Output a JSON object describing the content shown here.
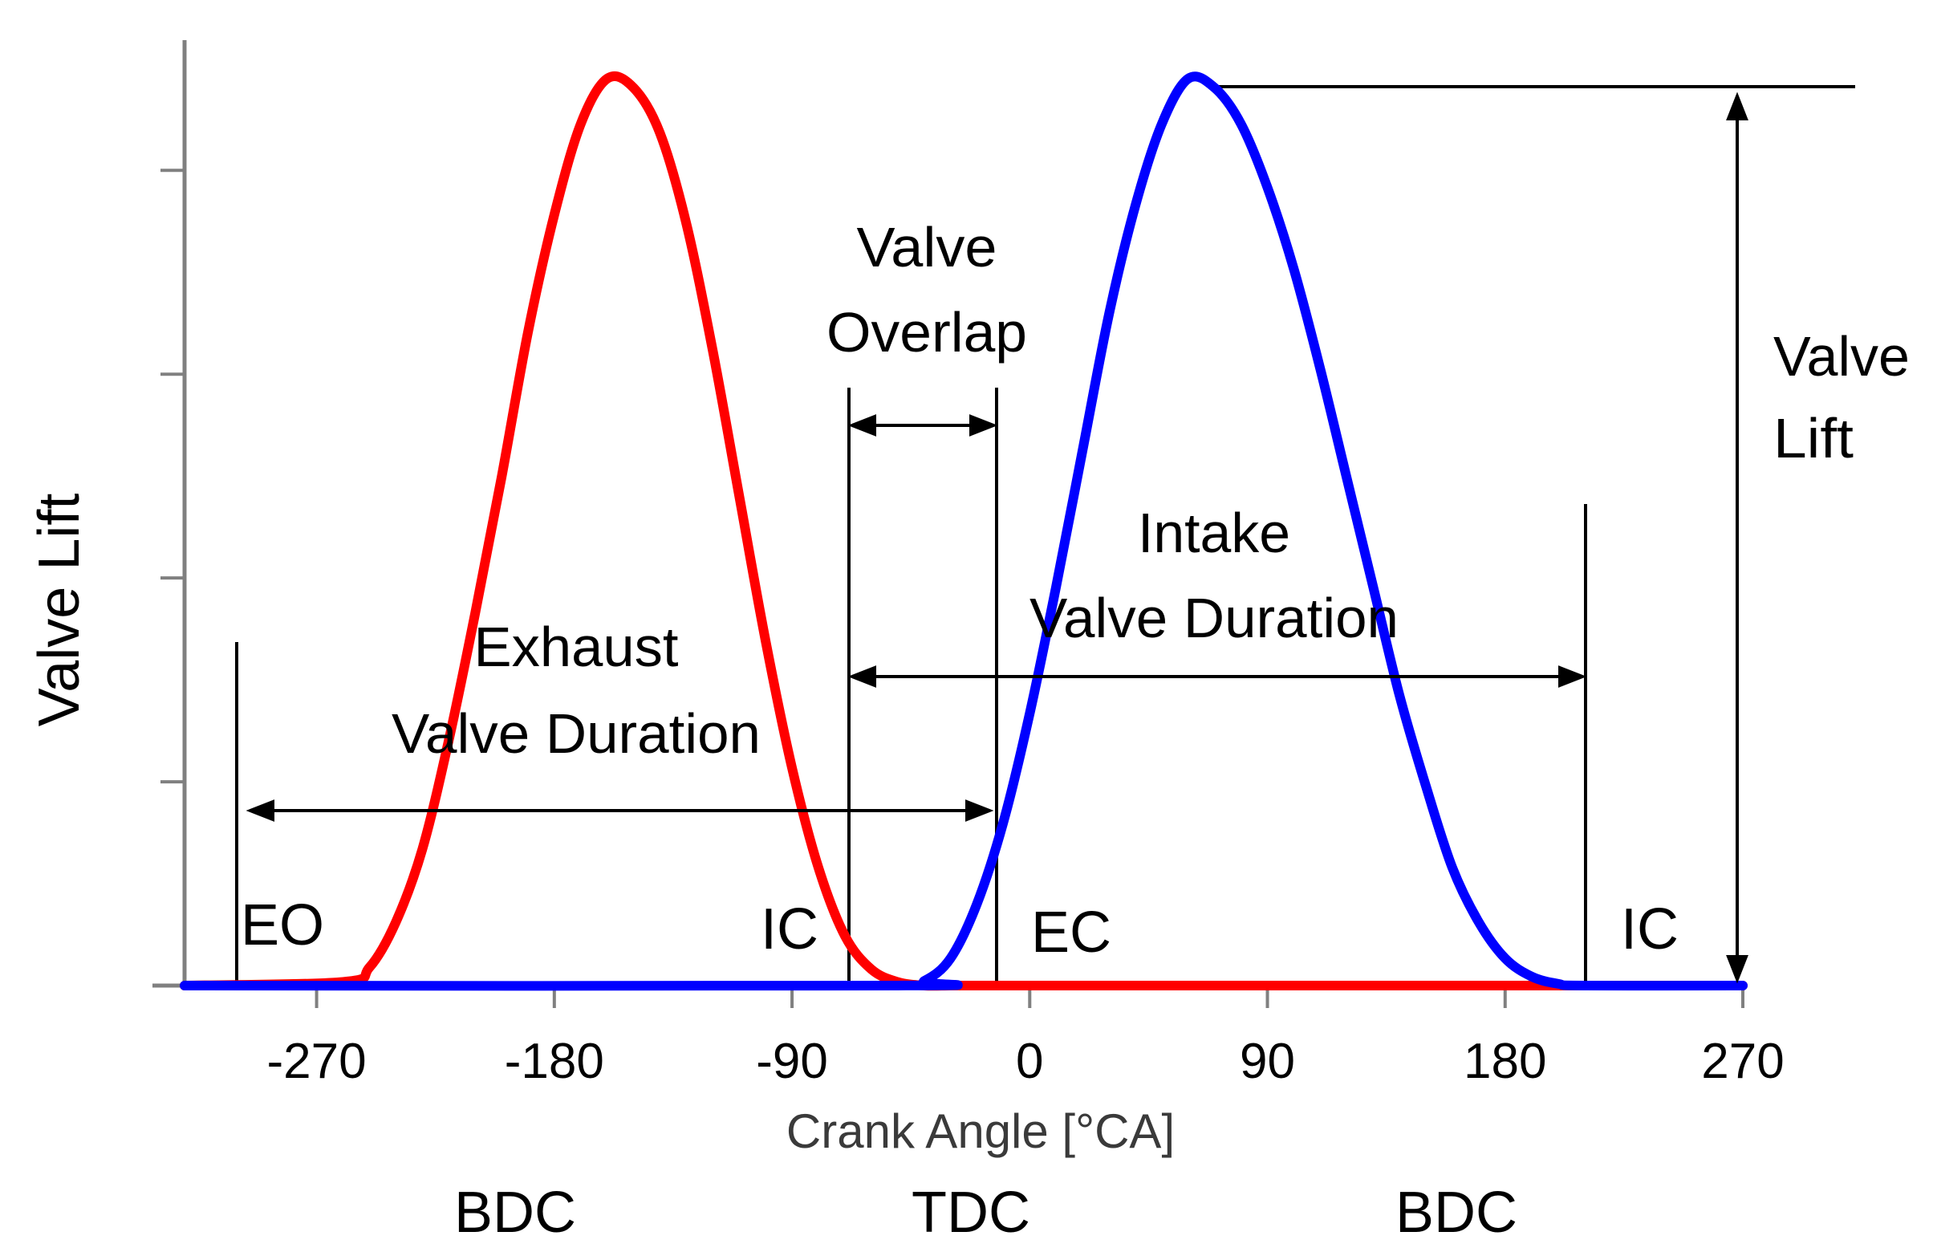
{
  "chart_data": {
    "type": "line",
    "title": "",
    "xlabel": "Crank Angle [°CA]",
    "ylabel": "Valve Lift",
    "xlim": [
      -320,
      270
    ],
    "ylim": [
      0,
      1
    ],
    "x_ticks": [
      -270,
      -180,
      -90,
      0,
      90,
      180,
      270
    ],
    "x_tick_labels": [
      "-270",
      "-180",
      "-90",
      "0",
      "90",
      "180",
      "270"
    ],
    "y_tick_count": 4,
    "grid": false,
    "legend": "none",
    "series": [
      {
        "color": "#ff0000",
        "x": [
          -320,
          -260,
          -250,
          -240,
          -230,
          -220,
          -210,
          -200,
          -190,
          -180,
          -170,
          -160,
          -150,
          -140,
          -130,
          -120,
          -110,
          -100,
          -90,
          -80,
          -70,
          -60,
          -50,
          -40,
          -30,
          -20,
          -10,
          270
        ],
        "y": [
          0,
          0.004,
          0.02,
          0.07,
          0.15,
          0.27,
          0.41,
          0.56,
          0.72,
          0.85,
          0.95,
          1.0,
          0.99,
          0.94,
          0.84,
          0.7,
          0.54,
          0.38,
          0.24,
          0.13,
          0.055,
          0.018,
          0.004,
          0.0,
          0.0,
          0.0,
          0.0,
          0.0
        ]
      },
      {
        "color": "#0000ff",
        "x": [
          -320,
          -50,
          -40,
          -30,
          -20,
          -10,
          0,
          10,
          20,
          30,
          40,
          50,
          60,
          70,
          80,
          90,
          100,
          110,
          120,
          130,
          140,
          150,
          160,
          170,
          180,
          190,
          200,
          210,
          270
        ],
        "y": [
          0,
          0.0,
          0.005,
          0.03,
          0.09,
          0.18,
          0.3,
          0.44,
          0.59,
          0.74,
          0.86,
          0.95,
          1.0,
          0.99,
          0.95,
          0.88,
          0.79,
          0.68,
          0.56,
          0.44,
          0.32,
          0.22,
          0.13,
          0.07,
          0.03,
          0.01,
          0.002,
          0.0,
          0.0
        ]
      }
    ],
    "annotations": {
      "valve_overlap": [
        "Valve",
        "Overlap"
      ],
      "intake_duration": [
        "Intake",
        "Valve Duration"
      ],
      "exhaust_duration": [
        "Exhaust",
        "Valve Duration"
      ],
      "valve_lift": [
        "Valve",
        "Lift"
      ],
      "events": [
        "EO",
        "IC",
        "EC",
        "IC"
      ],
      "positions": [
        "BDC",
        "TDC",
        "BDC"
      ]
    }
  },
  "colors": {
    "exhaust": "#ff0000",
    "intake": "#0000ff",
    "axis": "#808080"
  }
}
